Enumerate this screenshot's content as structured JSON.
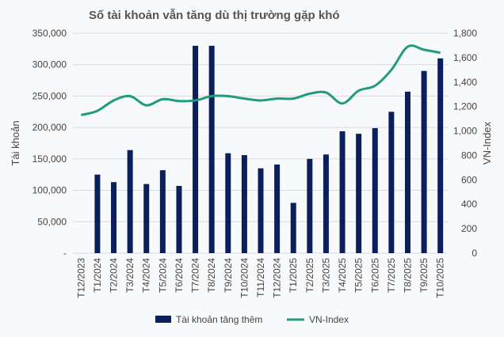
{
  "chart_data": {
    "type": "bar",
    "title": "Số tài khoản vẫn tăng dù thị trường gặp khó",
    "ylabel": "Tài khoản",
    "y2label": "VN-Index",
    "ylim": [
      0,
      350000
    ],
    "y2lim": [
      0,
      1800
    ],
    "yticks": [
      "-",
      "50,000",
      "100,000",
      "150,000",
      "200,000",
      "250,000",
      "300,000",
      "350,000"
    ],
    "y2ticks": [
      "0",
      "200",
      "400",
      "600",
      "800",
      "1,000",
      "1,200",
      "1,400",
      "1,600",
      "1,800"
    ],
    "grid": true,
    "legend_position": "bottom",
    "categories": [
      "T12/2023",
      "T1/2024",
      "T2/2024",
      "T3/2024",
      "T4/2024",
      "T5/2024",
      "T6/2024",
      "T7/2024",
      "T8/2024",
      "T9/2024",
      "T10/2024",
      "T11/2024",
      "T12/2024",
      "T1/2025",
      "T2/2025",
      "T3/2025",
      "T4/2025",
      "T5/2025",
      "T6/2025",
      "T7/2025",
      "T8/2025",
      "T9/2025",
      "T10/2025"
    ],
    "series": [
      {
        "name": "Tài khoản tăng thêm",
        "type": "bar",
        "axis": "left",
        "color": "#0b1f5c",
        "values": [
          0,
          125000,
          113000,
          164000,
          110000,
          132000,
          107000,
          330000,
          330000,
          159000,
          156000,
          135000,
          141000,
          80000,
          150000,
          157000,
          194000,
          190000,
          199000,
          225000,
          257000,
          290000,
          310000
        ]
      },
      {
        "name": "VN-Index",
        "type": "line",
        "axis": "right",
        "color": "#1f9b7f",
        "values": [
          1130,
          1165,
          1250,
          1285,
          1210,
          1260,
          1245,
          1250,
          1285,
          1285,
          1265,
          1250,
          1265,
          1265,
          1305,
          1315,
          1225,
          1330,
          1370,
          1500,
          1690,
          1665,
          1640
        ]
      }
    ]
  }
}
